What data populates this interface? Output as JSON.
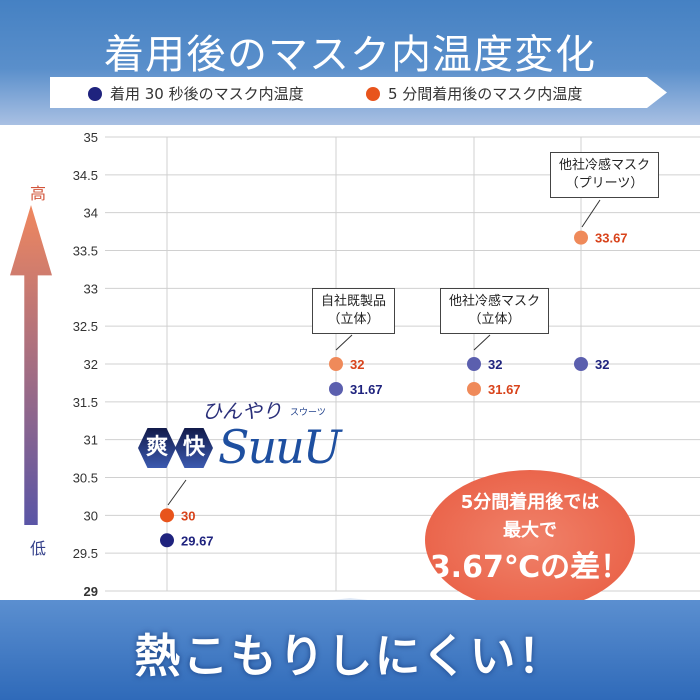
{
  "header": {
    "title": "着用後のマスク内温度変化"
  },
  "legend": [
    {
      "label": "着用 30 秒後のマスク内温度",
      "color": "#1f237e"
    },
    {
      "label": "5 分間着用後のマスク内温度",
      "color": "#e8541c"
    }
  ],
  "axis": {
    "high": "高",
    "low": "低"
  },
  "chart_data": {
    "type": "scatter",
    "ylim": [
      29,
      35
    ],
    "yticks": [
      "29",
      "29.5",
      "30",
      "30.5",
      "31",
      "31.5",
      "32",
      "32.5",
      "33",
      "33.5",
      "34",
      "34.5",
      "35"
    ],
    "grid": true,
    "categories": [
      "爽快SuuU",
      "自社既製品（立体）",
      "他社冷感マスク（立体）",
      "他社冷感マスク（プリーツ）"
    ],
    "series": [
      {
        "name": "着用 30 秒後のマスク内温度",
        "values": [
          29.67,
          31.67,
          32,
          32
        ],
        "labels": [
          "29.67",
          "31.67",
          "32",
          "32"
        ]
      },
      {
        "name": "5 分間着用後のマスク内温度",
        "values": [
          30,
          32,
          31.67,
          33.67
        ],
        "labels": [
          "30",
          "32",
          "31.67",
          "33.67"
        ]
      }
    ]
  },
  "callouts": {
    "own": [
      "自社既製品",
      "（立体）"
    ],
    "other1": [
      "他社冷感マスク",
      "（立体）"
    ],
    "other2": [
      "他社冷感マスク",
      "（プリーツ）"
    ]
  },
  "logo": {
    "sub": "ひんやり",
    "kanji": [
      "爽",
      "快"
    ],
    "name": "SuuU",
    "kana": "スウーツ"
  },
  "bubble": {
    "line1": "5分間着用後では",
    "line2": "最大で",
    "line3": "3.67℃の差！"
  },
  "footer": {
    "slogan": "熱こもりしにくい！"
  }
}
